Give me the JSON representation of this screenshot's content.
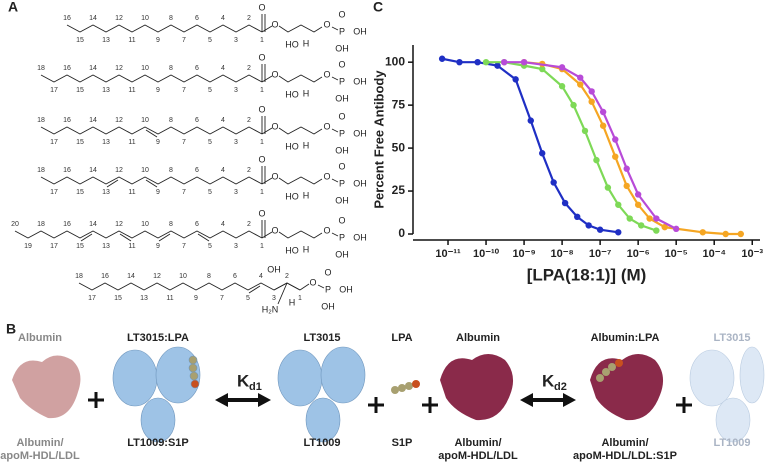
{
  "panel_a": {
    "label": "A",
    "molecules": [
      {
        "carbons": [
          "16",
          "15",
          "14",
          "13",
          "12",
          "11",
          "10",
          "9",
          "8",
          "7",
          "6",
          "5",
          "4",
          "3",
          "2",
          "1"
        ],
        "head": [
          "O",
          "O",
          "HO",
          "H",
          "O",
          "P",
          "O",
          "OH",
          "OH"
        ]
      },
      {
        "carbons": [
          "18",
          "17",
          "16",
          "15",
          "14",
          "13",
          "12",
          "11",
          "10",
          "9",
          "8",
          "7",
          "6",
          "5",
          "4",
          "3",
          "2",
          "1"
        ],
        "head": [
          "O",
          "O",
          "HO",
          "H",
          "O",
          "P",
          "O",
          "OH",
          "OH"
        ]
      },
      {
        "carbons": [
          "18",
          "17",
          "16",
          "15",
          "14",
          "13",
          "12",
          "11",
          "10",
          "9",
          "8",
          "7",
          "6",
          "5",
          "4",
          "3",
          "2",
          "1"
        ],
        "head": [
          "O",
          "O",
          "HO",
          "H",
          "O",
          "P",
          "O",
          "OH",
          "OH"
        ]
      },
      {
        "carbons": [
          "18",
          "17",
          "16",
          "15",
          "14",
          "13",
          "12",
          "11",
          "10",
          "9",
          "8",
          "7",
          "6",
          "5",
          "4",
          "3",
          "2",
          "1"
        ],
        "head": [
          "O",
          "O",
          "HO",
          "H",
          "O",
          "P",
          "O",
          "OH",
          "OH"
        ]
      },
      {
        "carbons": [
          "20",
          "19",
          "18",
          "17",
          "16",
          "15",
          "14",
          "13",
          "12",
          "11",
          "10",
          "9",
          "8",
          "7",
          "6",
          "5",
          "4",
          "3",
          "2",
          "1"
        ],
        "head": [
          "O",
          "O",
          "HO",
          "H",
          "O",
          "P",
          "O",
          "OH",
          "OH"
        ]
      },
      {
        "carbons": [
          "18",
          "17",
          "16",
          "15",
          "14",
          "13",
          "12",
          "11",
          "10",
          "9",
          "8",
          "7",
          "6",
          "5",
          "4",
          "3",
          "2",
          "1"
        ],
        "head": [
          "OH",
          "H₂N",
          "H",
          "O",
          "P",
          "O",
          "OH",
          "OH"
        ]
      }
    ]
  },
  "panel_b": {
    "label": "B",
    "top": [
      "Albumin",
      "LT3015:LPA",
      "LT3015",
      "LPA",
      "Albumin",
      "Albumin:LPA",
      "LT3015"
    ],
    "bottom": [
      [
        "Albumin/",
        "apoM-HDL/LDL"
      ],
      "LT1009:S1P",
      "LT1009",
      "S1P",
      [
        "Albumin/",
        "apoM-HDL/LDL"
      ],
      [
        "Albumin/",
        "apoM-HDL/LDL:S1P"
      ],
      "LT1009"
    ],
    "kd1": {
      "main": "K",
      "sub": "d1"
    },
    "kd2": {
      "main": "K",
      "sub": "d2"
    }
  },
  "chart_data": {
    "type": "line",
    "panel_label": "C",
    "x_label": "[LPA(18:1)] (M)",
    "y_label": "Percent Free Antibody",
    "log_x": true,
    "xlim": [
      1.2e-12,
      0.0016
    ],
    "ylim": [
      0,
      110
    ],
    "xticks": [
      {
        "value": 1e-11,
        "label": "10⁻¹¹"
      },
      {
        "value": 1e-10,
        "label": "10⁻¹⁰"
      },
      {
        "value": 1e-09,
        "label": "10⁻⁹"
      },
      {
        "value": 1e-08,
        "label": "10⁻⁸"
      },
      {
        "value": 1e-07,
        "label": "10⁻⁷"
      },
      {
        "value": 1e-06,
        "label": "10⁻⁶"
      },
      {
        "value": 1e-05,
        "label": "10⁻⁵"
      },
      {
        "value": 0.0001,
        "label": "10⁻⁴"
      },
      {
        "value": 0.001,
        "label": "10⁻³"
      }
    ],
    "yticks": [
      0,
      25,
      50,
      75,
      100
    ],
    "series": [
      {
        "color": "#1f2fc4",
        "x": [
          7e-12,
          2e-11,
          6e-11,
          2e-10,
          6e-10,
          1.5e-09,
          3e-09,
          6e-09,
          1.2e-08,
          2.5e-08,
          5e-08,
          1e-07,
          3e-07
        ],
        "values": [
          102,
          100,
          100,
          98,
          90,
          66,
          47,
          30,
          18,
          10,
          5,
          2.5,
          1
        ]
      },
      {
        "color": "#7ed957",
        "x": [
          1e-10,
          3e-10,
          1e-09,
          3e-09,
          1e-08,
          2e-08,
          4e-08,
          8e-08,
          1.6e-07,
          3e-07,
          6e-07,
          1.2e-06,
          3e-06
        ],
        "values": [
          100,
          100,
          98,
          96,
          86,
          75,
          60,
          43,
          27,
          17,
          9,
          5,
          2
        ]
      },
      {
        "color": "#f5a623",
        "x": [
          1e-09,
          3e-09,
          1e-08,
          3e-08,
          6e-08,
          1.2e-07,
          2.5e-07,
          5e-07,
          1e-06,
          2e-06,
          5e-06,
          5e-05,
          0.0002,
          0.0005
        ],
        "values": [
          100,
          99,
          96,
          87,
          77,
          63,
          45,
          28,
          17,
          9,
          4,
          1,
          0,
          0
        ]
      },
      {
        "color": "#b84bd8",
        "x": [
          3e-10,
          1e-09,
          1e-08,
          3e-08,
          6e-08,
          1.2e-07,
          2.5e-07,
          5e-07,
          1e-06,
          3e-06,
          1e-05
        ],
        "values": [
          100,
          100,
          97,
          91,
          83,
          71,
          55,
          38,
          23,
          9,
          3
        ]
      }
    ]
  }
}
